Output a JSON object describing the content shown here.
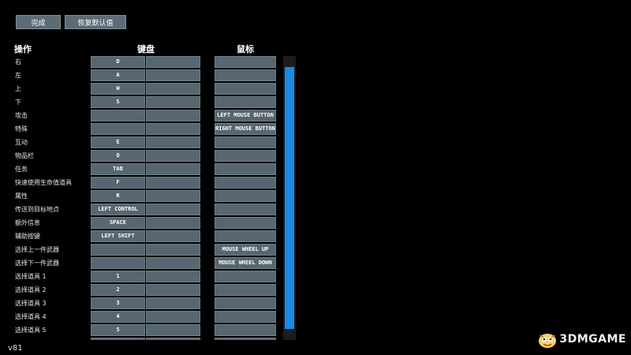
{
  "toolbar": {
    "done_label": "完成",
    "reset_label": "恢复默认值"
  },
  "headers": {
    "action": "操作",
    "keyboard": "键盘",
    "mouse": "鼠标"
  },
  "rows": [
    {
      "label": "右",
      "key1": "D",
      "key2": "",
      "mouse": ""
    },
    {
      "label": "左",
      "key1": "A",
      "key2": "",
      "mouse": ""
    },
    {
      "label": "上",
      "key1": "W",
      "key2": "",
      "mouse": ""
    },
    {
      "label": "下",
      "key1": "S",
      "key2": "",
      "mouse": ""
    },
    {
      "label": "攻击",
      "key1": "",
      "key2": "",
      "mouse": "LEFT MOUSE BUTTON"
    },
    {
      "label": "特殊",
      "key1": "",
      "key2": "",
      "mouse": "RIGHT MOUSE BUTTON"
    },
    {
      "label": "互动",
      "key1": "E",
      "key2": "",
      "mouse": ""
    },
    {
      "label": "物品栏",
      "key1": "Q",
      "key2": "",
      "mouse": ""
    },
    {
      "label": "任务",
      "key1": "TAB",
      "key2": "",
      "mouse": ""
    },
    {
      "label": "快速使用生命值道具",
      "key1": "F",
      "key2": "",
      "mouse": ""
    },
    {
      "label": "属性",
      "key1": "R",
      "key2": "",
      "mouse": ""
    },
    {
      "label": "传送到目标地点",
      "key1": "LEFT CONTROL",
      "key2": "",
      "mouse": ""
    },
    {
      "label": "额外信息",
      "key1": "SPACE",
      "key2": "",
      "mouse": ""
    },
    {
      "label": "辅助按键",
      "key1": "LEFT SHIFT",
      "key2": "",
      "mouse": ""
    },
    {
      "label": "选择上一件武器",
      "key1": "",
      "key2": "",
      "mouse": "MOUSE WHEEL UP"
    },
    {
      "label": "选择下一件武器",
      "key1": "",
      "key2": "",
      "mouse": "MOUSE WHEEL DOWN"
    },
    {
      "label": "选择道具 1",
      "key1": "1",
      "key2": "",
      "mouse": ""
    },
    {
      "label": "选择道具 2",
      "key1": "2",
      "key2": "",
      "mouse": ""
    },
    {
      "label": "选择道具 3",
      "key1": "3",
      "key2": "",
      "mouse": ""
    },
    {
      "label": "选择道具 4",
      "key1": "4",
      "key2": "",
      "mouse": ""
    },
    {
      "label": "选择道具 5",
      "key1": "5",
      "key2": "",
      "mouse": ""
    },
    {
      "label": "",
      "key1": "",
      "key2": "",
      "mouse": ""
    }
  ],
  "version": "v81",
  "watermark": {
    "text": "3DMGAME",
    "logo_icon": "3dm-mascot-icon"
  },
  "colors": {
    "background": "#000000",
    "cell": "#576670",
    "scroll_thumb": "#1a8ae6"
  }
}
